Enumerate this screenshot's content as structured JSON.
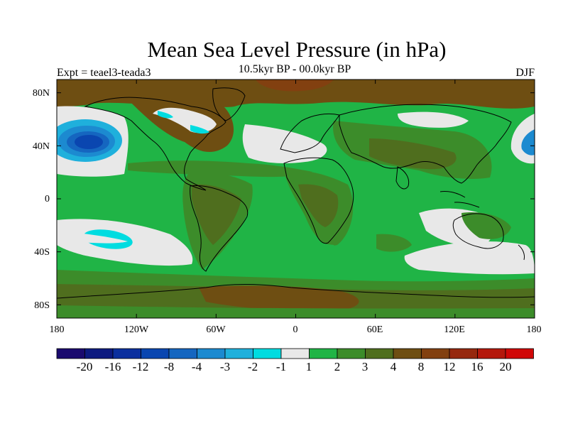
{
  "header": {
    "title": "Mean Sea Level Pressure (in hPa)",
    "subtitle": "10.5kyr BP - 00.0kyr BP",
    "experiment": "Expt = teael3-teada3",
    "season": "DJF"
  },
  "axes": {
    "lat_labels": [
      "80N",
      "40N",
      "0",
      "40S",
      "80S"
    ],
    "lat_values": [
      80,
      40,
      0,
      -40,
      -80
    ],
    "lon_labels": [
      "180",
      "120W",
      "60W",
      "0",
      "60E",
      "120E",
      "180"
    ],
    "lon_values": [
      -180,
      -120,
      -60,
      0,
      60,
      120,
      180
    ]
  },
  "colorbar": {
    "labels": [
      "-20",
      "-16",
      "-12",
      "-8",
      "-4",
      "-3",
      "-2",
      "-1",
      "1",
      "2",
      "3",
      "4",
      "8",
      "12",
      "16",
      "20"
    ],
    "colors": [
      "#1a0a6e",
      "#0d1a80",
      "#0b2f9e",
      "#0a46b0",
      "#1566c0",
      "#1c8ad0",
      "#1fb0dc",
      "#00dce0",
      "#e8e8e8",
      "#20b446",
      "#3c8c2a",
      "#4f6e1e",
      "#6e4e12",
      "#824010",
      "#96280e",
      "#b4180c",
      "#d00808"
    ]
  },
  "colors": {
    "positive_1_2": "#20b446",
    "positive_2_3": "#3c8c2a",
    "positive_3_4": "#4f6e1e",
    "positive_4_8": "#6e4e12",
    "positive_8_12": "#824010",
    "neutral": "#e8e8e8",
    "negative_1_2": "#00dce0",
    "negative_2_3": "#1fb0dc",
    "negative_3_4": "#1c8ad0",
    "negative_4_8": "#1566c0",
    "negative_8_12": "#0a46b0"
  }
}
